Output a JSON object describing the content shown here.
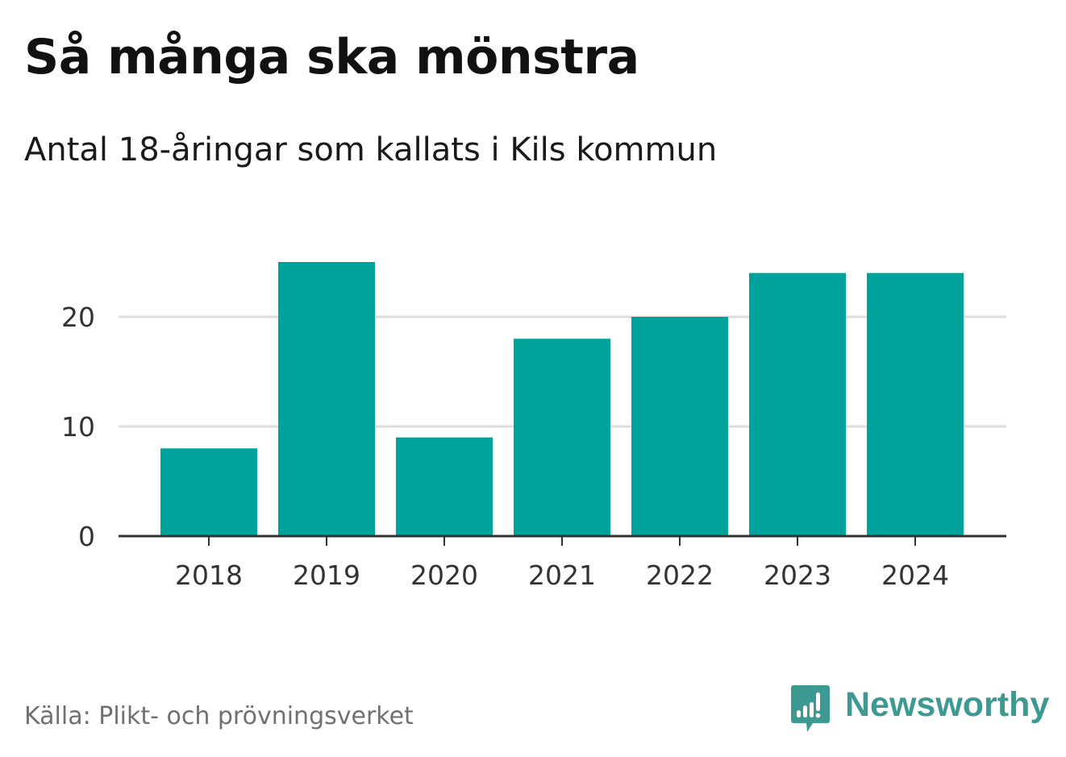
{
  "title": "Så många ska mönstra",
  "subtitle": "Antal 18-åringar som kallats i Kils kommun",
  "source": "Källa: Plikt- och prövningsverket",
  "brand": {
    "name": "Newsworthy",
    "icon": "newsworthy-logo-icon",
    "color": "#3d9a92"
  },
  "colors": {
    "bar": "#00a39b",
    "axis": "#333333",
    "grid": "#dddddd",
    "tick_text": "#333333"
  },
  "chart_data": {
    "type": "bar",
    "title": "Så många ska mönstra",
    "subtitle": "Antal 18-åringar som kallats i Kils kommun",
    "categories": [
      "2018",
      "2019",
      "2020",
      "2021",
      "2022",
      "2023",
      "2024"
    ],
    "values": [
      8,
      25,
      9,
      18,
      20,
      24,
      24
    ],
    "xlabel": "",
    "ylabel": "",
    "ylim": [
      0,
      25
    ],
    "yticks": [
      0,
      10,
      20
    ],
    "grid": true,
    "legend": "none"
  }
}
